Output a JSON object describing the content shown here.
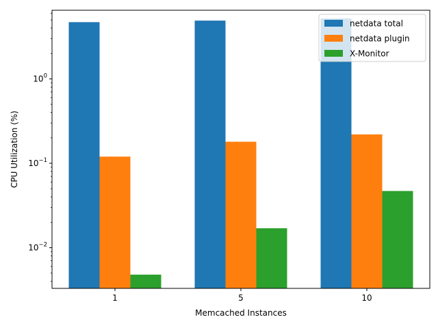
{
  "chart_data": {
    "type": "bar",
    "xlabel": "Memcached Instances",
    "ylabel": "CPU Utilization (%)",
    "yscale": "log",
    "ylim": [
      0.0033,
      6.5
    ],
    "categories": [
      "1",
      "5",
      "10"
    ],
    "y_ticks": [
      {
        "value": 0.01,
        "base": "10",
        "exp": "−2"
      },
      {
        "value": 0.1,
        "base": "10",
        "exp": "−1"
      },
      {
        "value": 1,
        "base": "10",
        "exp": "0"
      }
    ],
    "series": [
      {
        "name": "netdata total",
        "color": "#1f77b4",
        "values": [
          4.7,
          4.9,
          5.2
        ]
      },
      {
        "name": "netdata plugin",
        "color": "#ff7f0e",
        "values": [
          0.12,
          0.18,
          0.22
        ]
      },
      {
        "name": "X-Monitor",
        "color": "#2ca02c",
        "values": [
          0.0048,
          0.017,
          0.047
        ]
      }
    ],
    "legend_position": "upper-right",
    "grid": false
  }
}
